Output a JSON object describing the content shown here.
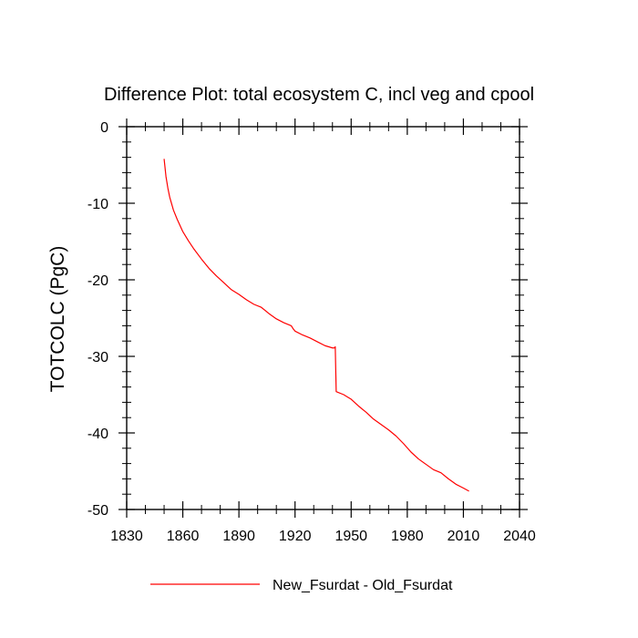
{
  "chart_data": {
    "type": "line",
    "title": "Difference Plot: total ecosystem C, incl veg and cpool",
    "xlabel": "",
    "ylabel": "TOTCOLC  (PgC)",
    "xlim": [
      1830,
      2040
    ],
    "ylim": [
      -50,
      0
    ],
    "x_ticks": [
      1830,
      1860,
      1890,
      1920,
      1950,
      1980,
      2010,
      2040
    ],
    "x_tick_labels": [
      "1830",
      "1860",
      "1890",
      "1920",
      "1950",
      "1980",
      "2010",
      "2040"
    ],
    "y_ticks": [
      0,
      -10,
      -20,
      -30,
      -40,
      -50
    ],
    "y_tick_labels": [
      "0",
      "-10",
      "-20",
      "-30",
      "-40",
      "-50"
    ],
    "grid": false,
    "legend_position": "bottom",
    "series": [
      {
        "name": "New_Fsurdat - Old_Fsurdat",
        "color": "#ff0000",
        "x": [
          1850,
          1851,
          1852,
          1853,
          1855,
          1857,
          1860,
          1863,
          1866,
          1870,
          1874,
          1878,
          1882,
          1886,
          1890,
          1894,
          1898,
          1902,
          1906,
          1910,
          1914,
          1918,
          1919,
          1920,
          1924,
          1928,
          1932,
          1936,
          1940,
          1941,
          1941.5,
          1942,
          1946,
          1950,
          1954,
          1958,
          1962,
          1966,
          1970,
          1974,
          1978,
          1982,
          1986,
          1990,
          1994,
          1998,
          2002,
          2006,
          2010,
          2013
        ],
        "y": [
          -4.2,
          -6.5,
          -8.0,
          -9.2,
          -10.9,
          -12.1,
          -13.7,
          -14.9,
          -16.0,
          -17.3,
          -18.5,
          -19.5,
          -20.4,
          -21.3,
          -21.9,
          -22.6,
          -23.2,
          -23.6,
          -24.4,
          -25.1,
          -25.6,
          -26.0,
          -26.4,
          -26.7,
          -27.2,
          -27.6,
          -28.1,
          -28.6,
          -28.9,
          -28.9,
          -28.75,
          -34.6,
          -35.0,
          -35.6,
          -36.5,
          -37.3,
          -38.2,
          -38.9,
          -39.6,
          -40.4,
          -41.4,
          -42.5,
          -43.4,
          -44.1,
          -44.8,
          -45.2,
          -46.0,
          -46.7,
          -47.2,
          -47.6
        ]
      }
    ]
  }
}
